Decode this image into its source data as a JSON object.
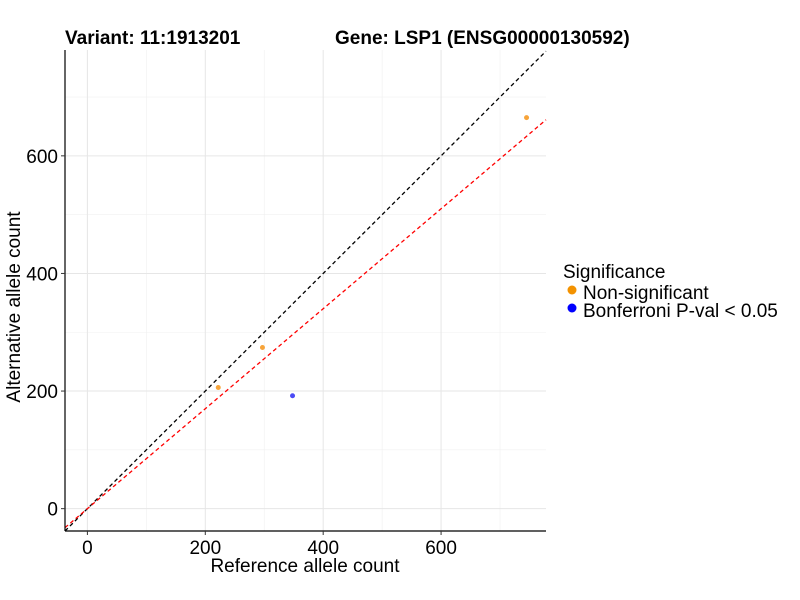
{
  "title_left": "Variant: 11:1913201",
  "title_right": "Gene: LSP1 (ENSG00000130592)",
  "chart_data": {
    "type": "scatter",
    "xlabel": "Reference allele count",
    "ylabel": "Alternative allele count",
    "xlim": [
      -38,
      778
    ],
    "ylim": [
      -38,
      780
    ],
    "x_ticks": [
      0,
      200,
      400,
      600
    ],
    "y_ticks": [
      0,
      200,
      400,
      600
    ],
    "grid": true,
    "legend_position": "right",
    "legend_title": "Significance",
    "series": [
      {
        "name": "Non-significant",
        "color": "#F7A43A",
        "points": [
          {
            "x": 222,
            "y": 206
          },
          {
            "x": 297,
            "y": 274
          },
          {
            "x": 745,
            "y": 665
          }
        ]
      },
      {
        "name": "Bonferroni P-val < 0.05",
        "color": "#4B4BF5",
        "points": [
          {
            "x": 348,
            "y": 192
          }
        ]
      }
    ],
    "legend_colors": [
      "#F39200",
      "#0000FF"
    ],
    "reference_lines": [
      {
        "slope": 1,
        "intercept": 0,
        "color": "#000000",
        "style": "dashed"
      },
      {
        "slope": 0.85,
        "intercept": 0,
        "color": "#FF0000",
        "style": "dashed"
      }
    ]
  }
}
